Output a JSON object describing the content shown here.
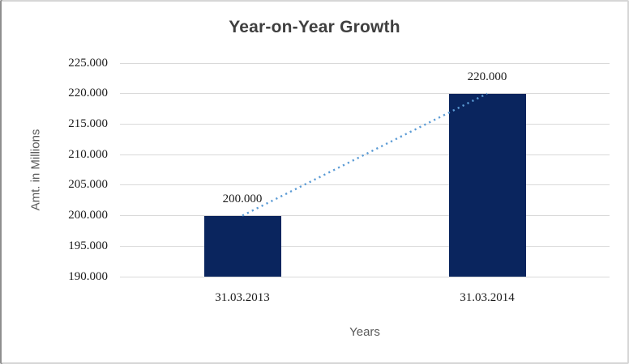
{
  "chart_data": {
    "type": "bar",
    "title": "Year-on-Year Growth",
    "xlabel": "Years",
    "ylabel": "Amt. in Millions",
    "categories": [
      "31.03.2013",
      "31.03.2014"
    ],
    "values": [
      200000,
      220000
    ],
    "value_labels": [
      "200.000",
      "220.000"
    ],
    "ylim": [
      190000,
      225000
    ],
    "y_ticks": {
      "values": [
        190000,
        195000,
        200000,
        205000,
        210000,
        215000,
        220000,
        225000
      ],
      "labels": [
        "190.000",
        "195.000",
        "200.000",
        "205.000",
        "210.000",
        "215.000",
        "220.000",
        "225.000"
      ]
    },
    "grid": true,
    "legend": "none",
    "trendline": {
      "type": "linear",
      "style": "dotted",
      "color": "#5b9bd5",
      "from_value": 200000,
      "to_value": 220000
    },
    "colors": {
      "bar": "#0a255e",
      "gridline": "#d9d9d9",
      "title_text": "#3f3f3f",
      "axis_title_text": "#595959",
      "tick_text": "#1c1c1c",
      "value_label_text": "#1c1c1c"
    }
  }
}
